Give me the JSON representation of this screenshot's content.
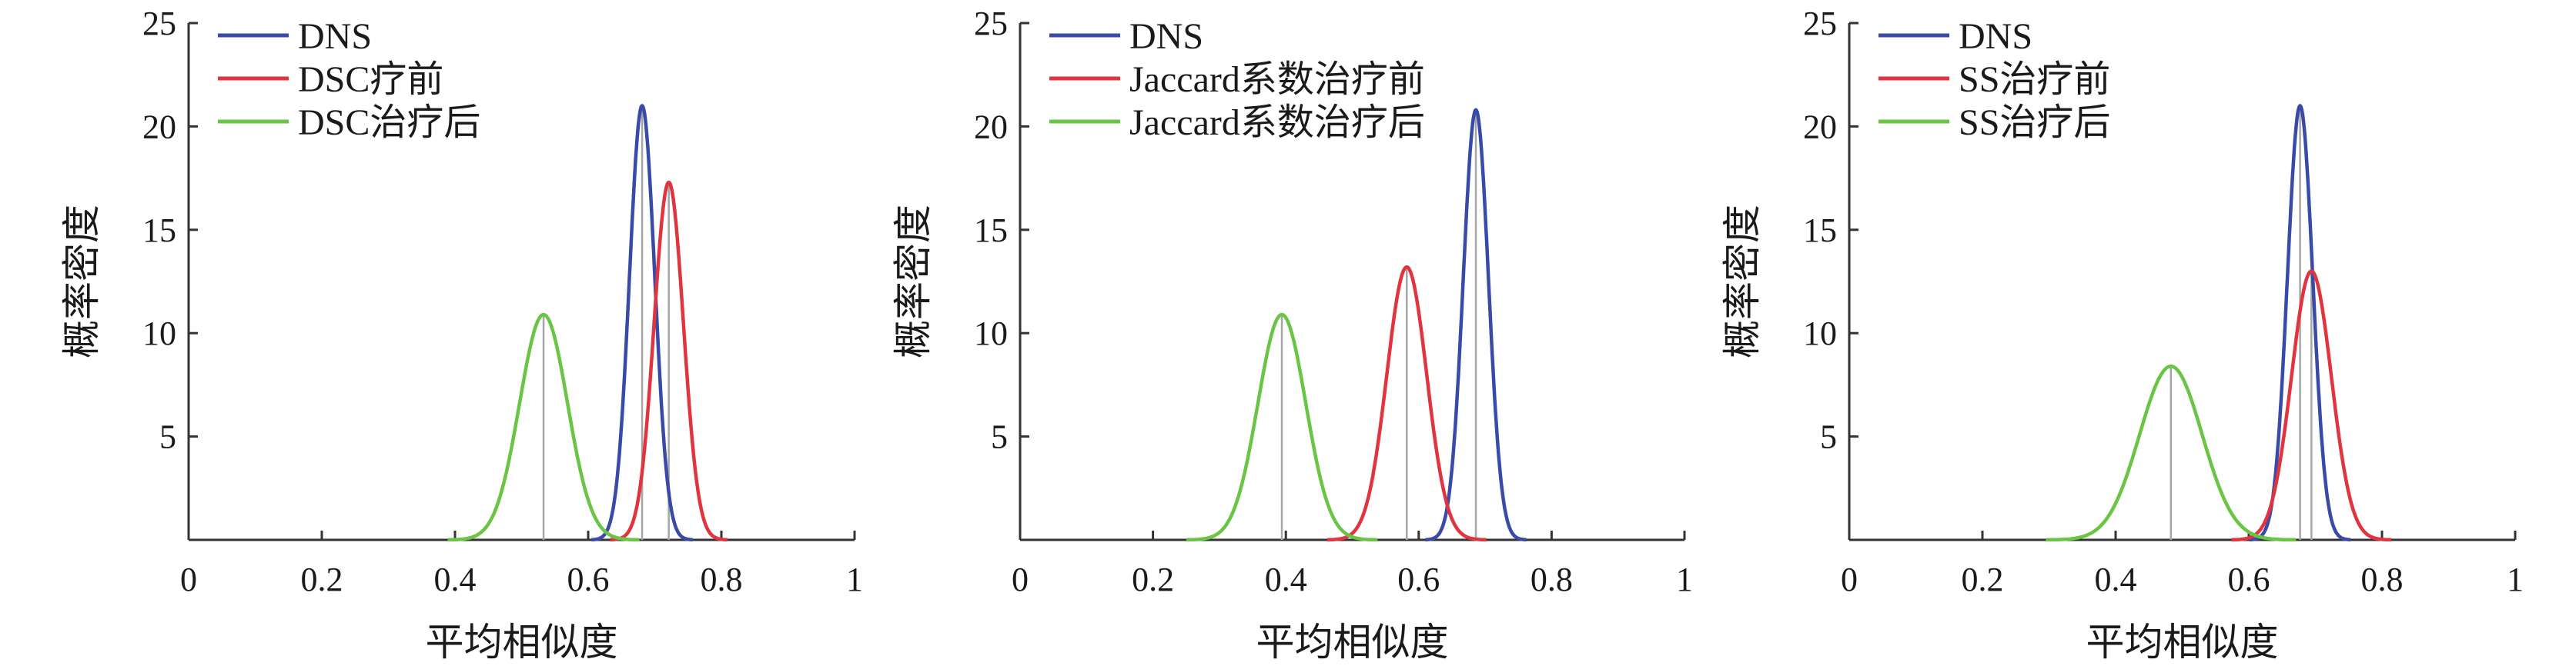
{
  "chart_data": [
    {
      "type": "line",
      "xlabel": "平均相似度",
      "ylabel": "概率密度",
      "xlim": [
        0,
        1
      ],
      "ylim": [
        0,
        25
      ],
      "xticks": [
        "0",
        "0.2",
        "0.4",
        "0.6",
        "0.8",
        "1"
      ],
      "yticks": [
        "5",
        "10",
        "15",
        "20",
        "25"
      ],
      "legend": "top-left",
      "grid": false,
      "series": [
        {
          "name": "DNS",
          "color": "#3a4aa8",
          "mean": 0.681,
          "peak": 21.0,
          "sd": 0.019
        },
        {
          "name": "DSC疗前",
          "color": "#e0353f",
          "mean": 0.721,
          "peak": 17.3,
          "sd": 0.022
        },
        {
          "name": "DSC治疗后",
          "color": "#6ac545",
          "mean": 0.533,
          "peak": 10.9,
          "sd": 0.036
        }
      ],
      "markers": [
        0.681,
        0.721,
        0.533
      ]
    },
    {
      "type": "line",
      "xlabel": "平均相似度",
      "ylabel": "概率密度",
      "xlim": [
        0,
        1
      ],
      "ylim": [
        0,
        25
      ],
      "xticks": [
        "0",
        "0.2",
        "0.4",
        "0.6",
        "0.8",
        "1"
      ],
      "yticks": [
        "5",
        "10",
        "15",
        "20",
        "25"
      ],
      "legend": "top-left",
      "grid": false,
      "series": [
        {
          "name": "DNS",
          "color": "#3a4aa8",
          "mean": 0.686,
          "peak": 20.8,
          "sd": 0.019
        },
        {
          "name": "Jaccard系数治疗前",
          "color": "#e0353f",
          "mean": 0.582,
          "peak": 13.2,
          "sd": 0.03
        },
        {
          "name": "Jaccard系数治疗后",
          "color": "#6ac545",
          "mean": 0.394,
          "peak": 10.9,
          "sd": 0.036
        }
      ],
      "markers": [
        0.686,
        0.582,
        0.394
      ]
    },
    {
      "type": "line",
      "xlabel": "平均相似度",
      "ylabel": "概率密度",
      "xlim": [
        0,
        1
      ],
      "ylim": [
        0,
        25
      ],
      "xticks": [
        "0",
        "0.2",
        "0.4",
        "0.6",
        "0.8",
        "1"
      ],
      "yticks": [
        "5",
        "10",
        "15",
        "20",
        "25"
      ],
      "legend": "top-left",
      "grid": false,
      "series": [
        {
          "name": "DNS",
          "color": "#3a4aa8",
          "mean": 0.677,
          "peak": 21.0,
          "sd": 0.019
        },
        {
          "name": "SS治疗前",
          "color": "#e0353f",
          "mean": 0.694,
          "peak": 13.0,
          "sd": 0.03
        },
        {
          "name": "SS治疗后",
          "color": "#6ac545",
          "mean": 0.483,
          "peak": 8.4,
          "sd": 0.047
        }
      ],
      "markers": [
        0.677,
        0.694,
        0.483
      ]
    }
  ]
}
